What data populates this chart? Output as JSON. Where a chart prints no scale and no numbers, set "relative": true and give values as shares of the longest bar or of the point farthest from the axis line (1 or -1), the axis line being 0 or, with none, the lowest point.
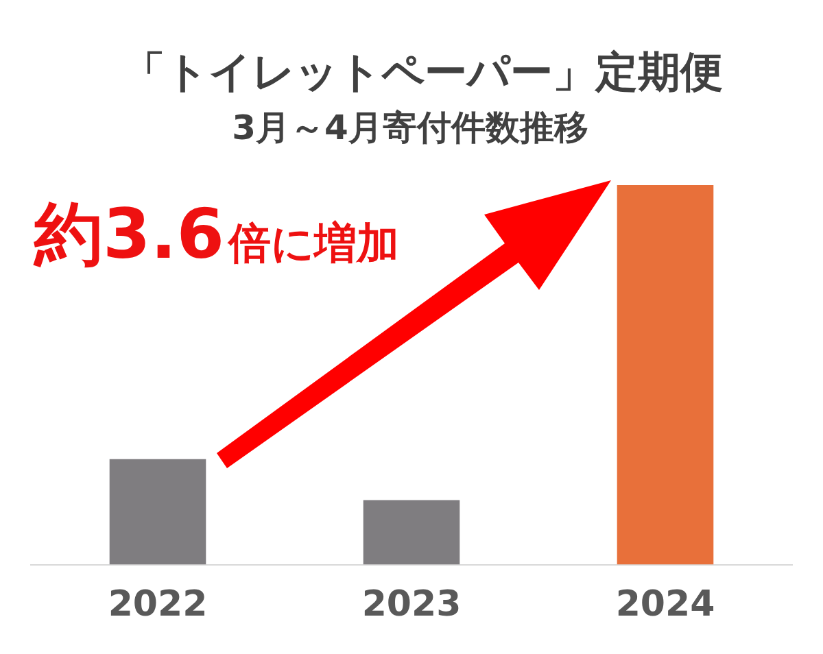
{
  "chart_data": {
    "type": "bar",
    "title": "「トイレットペーパー」定期便",
    "subtitle": "3月～4月寄付件数推移",
    "relative": true,
    "categories": [
      "2022",
      "2023",
      "2024"
    ],
    "values": [
      0.278,
      0.17,
      1
    ],
    "colors": [
      "#7f7d80",
      "#7f7d80",
      "#e8703a"
    ],
    "annotations": [
      "約3.6倍に増加"
    ],
    "grid": false,
    "legend": false
  }
}
